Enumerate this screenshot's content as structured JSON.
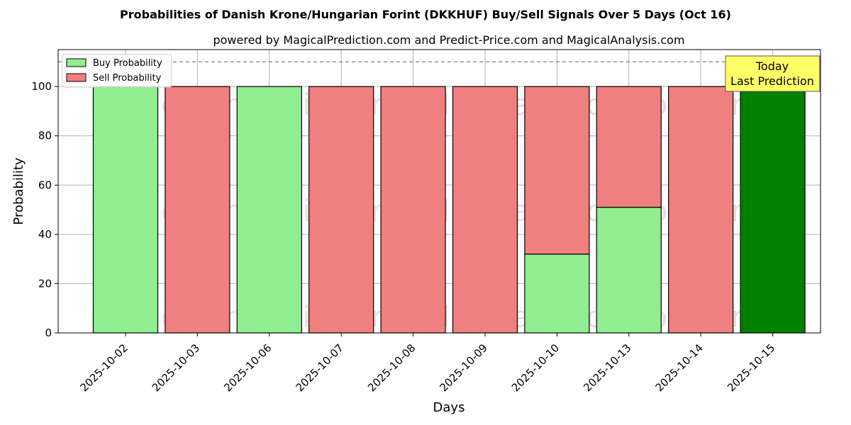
{
  "chart_data": {
    "type": "bar",
    "stacked": true,
    "title": "Probabilities of Danish Krone/Hungarian Forint (DKKHUF) Buy/Sell Signals Over 5 Days (Oct 16)",
    "subtitle": "powered by MagicalPrediction.com and Predict-Price.com and MagicalAnalysis.com",
    "xlabel": "Days",
    "ylabel": "Probability",
    "ylim": [
      0,
      115
    ],
    "yticks": [
      0,
      20,
      40,
      60,
      80,
      100
    ],
    "categories": [
      "2025-10-02",
      "2025-10-03",
      "2025-10-06",
      "2025-10-07",
      "2025-10-08",
      "2025-10-09",
      "2025-10-10",
      "2025-10-13",
      "2025-10-14",
      "2025-10-15"
    ],
    "series": [
      {
        "name": "Buy Probability",
        "values": [
          100,
          0,
          100,
          0,
          0,
          0,
          32,
          51,
          0,
          100
        ],
        "color": "#90ee90"
      },
      {
        "name": "Sell Probability",
        "values": [
          0,
          100,
          0,
          100,
          100,
          100,
          68,
          49,
          100,
          0
        ],
        "color": "#f08080"
      }
    ],
    "highlight": {
      "category_index": 9,
      "color": "#008000"
    },
    "reference_line": {
      "y": 110,
      "style": "dashed",
      "color": "#808080"
    },
    "annotation": {
      "lines": [
        "Today",
        "Last Prediction"
      ],
      "background": "#ffff66"
    },
    "legend_position": "top-left",
    "grid": true,
    "watermarks": [
      "MagicalAnalysis.com",
      "MagicalPrediction.com"
    ]
  }
}
